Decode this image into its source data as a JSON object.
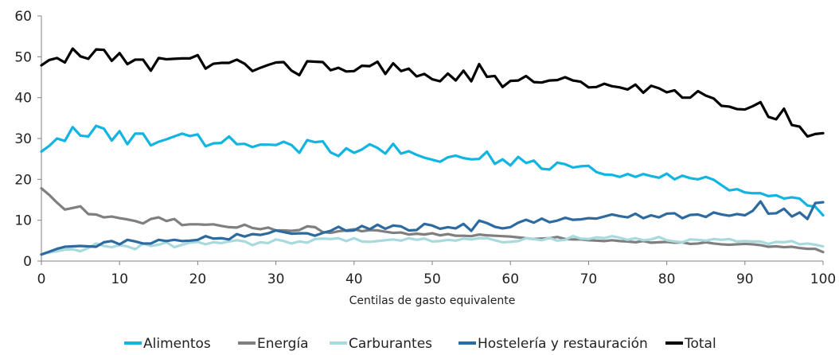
{
  "chart_data": {
    "type": "line",
    "title": "",
    "xlabel": "Centilas de gasto equivalente",
    "ylabel": "",
    "xlim": [
      0,
      100
    ],
    "ylim": [
      0,
      60
    ],
    "xticks": [
      0,
      10,
      20,
      30,
      40,
      50,
      60,
      70,
      80,
      90,
      100
    ],
    "yticks": [
      0,
      10,
      20,
      30,
      40,
      50,
      60
    ],
    "grid": false,
    "legend_position": "bottom",
    "series": [
      {
        "name": "Alimentos",
        "color": "#12b4e2",
        "values": [
          26.8,
          28.2,
          30.0,
          29.4,
          32.8,
          30.7,
          30.5,
          33.1,
          32.4,
          29.5,
          31.8,
          28.6,
          31.2,
          31.2,
          28.3,
          29.2,
          29.8,
          30.5,
          31.2,
          30.6,
          31.0,
          28.1,
          28.8,
          28.9,
          30.5,
          28.6,
          28.7,
          27.9,
          28.5,
          28.5,
          28.4,
          29.2,
          28.4,
          26.5,
          29.6,
          29.1,
          29.3,
          26.6,
          25.7,
          27.6,
          26.5,
          27.3,
          28.6,
          27.7,
          26.3,
          28.7,
          26.3,
          26.9,
          26.0,
          25.3,
          24.8,
          24.3,
          25.4,
          25.8,
          25.2,
          24.9,
          25.0,
          26.8,
          23.8,
          24.9,
          23.4,
          25.5,
          24.0,
          24.6,
          22.6,
          22.4,
          24.1,
          23.7,
          22.9,
          23.2,
          23.3,
          21.8,
          21.2,
          21.1,
          20.6,
          21.3,
          20.6,
          21.3,
          20.8,
          20.4,
          21.4,
          20.0,
          20.9,
          20.3,
          20.0,
          20.6,
          19.9,
          18.6,
          17.3,
          17.6,
          16.8,
          16.6,
          16.6,
          15.9,
          16.1,
          15.3,
          15.6,
          15.3,
          13.6,
          13.3,
          11.2
        ]
      },
      {
        "name": "Energía",
        "color": "#7f7f7f",
        "values": [
          17.8,
          16.2,
          14.3,
          12.6,
          13.0,
          13.4,
          11.5,
          11.4,
          10.7,
          10.9,
          10.5,
          10.2,
          9.8,
          9.2,
          10.3,
          10.7,
          9.8,
          10.3,
          8.8,
          9.0,
          9.0,
          8.9,
          9.0,
          8.6,
          8.3,
          8.2,
          8.9,
          8.1,
          7.8,
          8.2,
          7.5,
          7.5,
          7.4,
          7.6,
          8.5,
          8.3,
          7.1,
          6.9,
          7.3,
          7.5,
          7.8,
          7.3,
          7.6,
          7.5,
          7.2,
          6.9,
          7.0,
          6.5,
          6.7,
          6.5,
          6.8,
          6.3,
          6.6,
          6.2,
          6.2,
          6.1,
          6.5,
          6.3,
          6.2,
          6.1,
          6.0,
          5.8,
          5.6,
          5.4,
          5.5,
          5.6,
          5.9,
          5.4,
          5.3,
          5.3,
          5.1,
          5.0,
          4.9,
          5.1,
          4.9,
          4.8,
          4.6,
          4.9,
          4.5,
          4.6,
          4.7,
          4.5,
          4.6,
          4.2,
          4.3,
          4.6,
          4.3,
          4.1,
          4.0,
          4.1,
          4.2,
          4.1,
          3.9,
          3.5,
          3.6,
          3.4,
          3.5,
          3.2,
          3.0,
          3.0,
          2.2
        ]
      },
      {
        "name": "Carburantes",
        "color": "#a8dadd",
        "values": [
          1.7,
          2.1,
          2.4,
          2.8,
          2.9,
          2.4,
          3.2,
          4.3,
          3.7,
          3.4,
          3.9,
          3.6,
          2.9,
          4.3,
          3.7,
          4.0,
          4.6,
          3.4,
          4.0,
          4.5,
          4.7,
          4.1,
          4.6,
          4.4,
          4.8,
          5.1,
          4.8,
          3.9,
          4.6,
          4.4,
          5.3,
          4.9,
          4.3,
          4.8,
          4.5,
          5.4,
          5.5,
          5.4,
          5.6,
          4.9,
          5.6,
          4.8,
          4.7,
          4.9,
          5.1,
          5.3,
          5.0,
          5.6,
          5.2,
          5.5,
          4.8,
          4.9,
          5.2,
          5.0,
          5.5,
          5.3,
          5.6,
          5.6,
          5.1,
          4.6,
          4.7,
          4.9,
          5.6,
          5.4,
          5.1,
          5.7,
          5.0,
          5.2,
          6.1,
          5.5,
          5.4,
          5.8,
          5.6,
          6.1,
          5.7,
          5.2,
          5.6,
          5.1,
          5.3,
          5.9,
          5.1,
          4.8,
          4.6,
          5.3,
          5.2,
          5.0,
          5.4,
          5.2,
          5.4,
          4.8,
          4.9,
          4.8,
          4.8,
          4.2,
          4.7,
          4.6,
          4.9,
          4.1,
          4.3,
          4.0,
          3.6
        ]
      },
      {
        "name": "Hostelería y restauración",
        "color": "#2c6aa0",
        "values": [
          1.6,
          2.3,
          3.0,
          3.5,
          3.6,
          3.7,
          3.6,
          3.5,
          4.6,
          4.9,
          4.1,
          5.2,
          4.8,
          4.3,
          4.3,
          5.2,
          4.9,
          5.2,
          4.9,
          5.0,
          5.2,
          6.1,
          5.5,
          5.6,
          5.3,
          6.6,
          6.0,
          6.6,
          6.4,
          6.8,
          7.5,
          7.1,
          6.7,
          6.8,
          6.8,
          6.2,
          6.9,
          7.4,
          8.4,
          7.4,
          7.5,
          8.6,
          7.8,
          8.9,
          7.9,
          8.7,
          8.5,
          7.5,
          7.6,
          9.1,
          8.7,
          7.9,
          8.3,
          8.0,
          9.1,
          7.4,
          9.9,
          9.3,
          8.4,
          8.0,
          8.3,
          9.4,
          10.1,
          9.4,
          10.4,
          9.5,
          9.9,
          10.6,
          10.1,
          10.2,
          10.5,
          10.4,
          10.9,
          11.4,
          11.0,
          10.7,
          11.6,
          10.5,
          11.2,
          10.7,
          11.6,
          11.7,
          10.5,
          11.3,
          11.4,
          10.8,
          11.9,
          11.4,
          11.1,
          11.5,
          11.2,
          12.3,
          14.6,
          11.6,
          11.7,
          12.8,
          10.9,
          11.9,
          10.3,
          14.2,
          14.4
        ]
      },
      {
        "name": "Total",
        "color": "#000000",
        "values": [
          47.9,
          49.2,
          49.7,
          48.6,
          52.0,
          50.1,
          49.5,
          51.8,
          51.7,
          49.0,
          50.9,
          48.2,
          49.3,
          49.3,
          46.6,
          49.7,
          49.4,
          49.5,
          49.6,
          49.6,
          50.4,
          47.1,
          48.3,
          48.5,
          48.5,
          49.3,
          48.3,
          46.5,
          47.3,
          48.0,
          48.6,
          48.7,
          46.6,
          45.5,
          48.9,
          48.8,
          48.7,
          46.7,
          47.3,
          46.4,
          46.5,
          47.8,
          47.7,
          48.8,
          45.8,
          48.4,
          46.5,
          47.1,
          45.2,
          45.8,
          44.5,
          44.0,
          45.9,
          44.2,
          46.6,
          44.0,
          48.2,
          45.1,
          45.3,
          42.6,
          44.1,
          44.2,
          45.3,
          43.8,
          43.7,
          44.2,
          44.3,
          45.0,
          44.2,
          43.9,
          42.5,
          42.6,
          43.4,
          42.8,
          42.5,
          42.0,
          43.2,
          41.2,
          42.9,
          42.3,
          41.3,
          41.8,
          40.0,
          40.0,
          41.6,
          40.5,
          39.8,
          38.0,
          37.8,
          37.2,
          37.1,
          37.9,
          38.9,
          35.3,
          34.7,
          37.3,
          33.3,
          32.9,
          30.5,
          31.1,
          31.3
        ]
      }
    ]
  }
}
